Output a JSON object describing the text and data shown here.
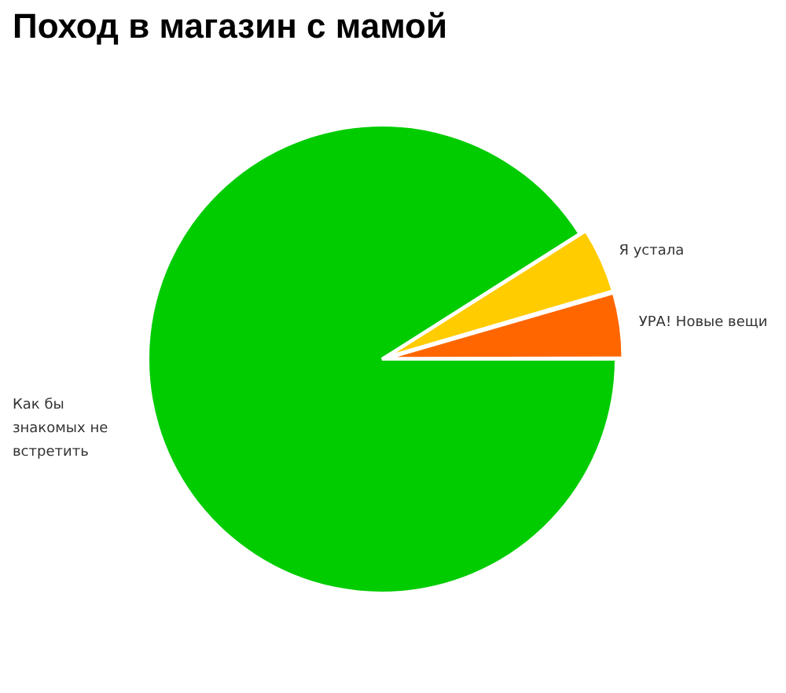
{
  "chart_data": {
    "type": "pie",
    "title": "Поход в магазин с мамой",
    "categories": [
      "Как бы знакомых не встретить",
      "Я устала",
      "УРА! Новые вещи"
    ],
    "values": [
      91,
      4.5,
      4.5
    ],
    "colors": [
      "#00cc00",
      "#ffcc00",
      "#ff6600"
    ]
  }
}
